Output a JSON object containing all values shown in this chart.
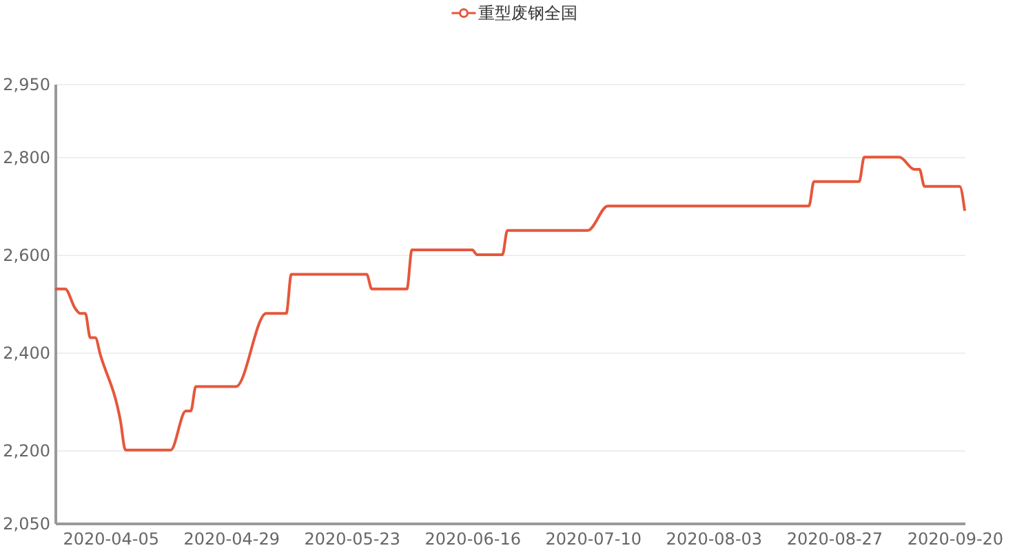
{
  "chart_data": {
    "type": "line",
    "legend": "top",
    "grid": "y",
    "marker": "none",
    "line_style": "solid",
    "x": [
      "2020-03-25",
      "2020-03-27",
      "2020-03-29",
      "2020-03-30",
      "2020-03-31",
      "2020-04-01",
      "2020-04-02",
      "2020-04-03",
      "2020-04-07",
      "2020-04-08",
      "2020-04-17",
      "2020-04-20",
      "2020-04-21",
      "2020-04-22",
      "2020-04-29",
      "2020-04-30",
      "2020-05-06",
      "2020-05-10",
      "2020-05-11",
      "2020-05-26",
      "2020-05-27",
      "2020-06-03",
      "2020-06-04",
      "2020-06-16",
      "2020-06-17",
      "2020-06-22",
      "2020-06-23",
      "2020-07-09",
      "2020-07-13",
      "2020-08-22",
      "2020-08-23",
      "2020-09-01",
      "2020-09-02",
      "2020-09-09",
      "2020-09-12",
      "2020-09-13",
      "2020-09-14",
      "2020-09-21",
      "2020-09-22"
    ],
    "series": [
      {
        "name": "重型废钢全国",
        "color": "#e5573b",
        "values": [
          2530,
          2530,
          2490,
          2480,
          2480,
          2430,
          2430,
          2395,
          2260,
          2200,
          2200,
          2280,
          2280,
          2330,
          2330,
          2330,
          2480,
          2480,
          2560,
          2560,
          2530,
          2530,
          2610,
          2610,
          2600,
          2600,
          2650,
          2650,
          2700,
          2700,
          2750,
          2750,
          2800,
          2800,
          2775,
          2775,
          2740,
          2740,
          2690
        ]
      }
    ],
    "xlim": [
      "2020-03-25",
      "2020-09-22"
    ],
    "xticks": [
      {
        "value": "2020-04-05",
        "label": "2020-04-05"
      },
      {
        "value": "2020-04-29",
        "label": "2020-04-29"
      },
      {
        "value": "2020-05-23",
        "label": "2020-05-23"
      },
      {
        "value": "2020-06-16",
        "label": "2020-06-16"
      },
      {
        "value": "2020-07-10",
        "label": "2020-07-10"
      },
      {
        "value": "2020-08-03",
        "label": "2020-08-03"
      },
      {
        "value": "2020-08-27",
        "label": "2020-08-27"
      },
      {
        "value": "2020-09-20",
        "label": "2020-09-20"
      }
    ],
    "ylim": [
      2050,
      2950
    ],
    "yticks": [
      {
        "value": 2050,
        "label": "2,050"
      },
      {
        "value": 2200,
        "label": "2,200"
      },
      {
        "value": 2400,
        "label": "2,400"
      },
      {
        "value": 2600,
        "label": "2,600"
      },
      {
        "value": 2800,
        "label": "2,800"
      },
      {
        "value": 2950,
        "label": "2,950"
      }
    ]
  }
}
